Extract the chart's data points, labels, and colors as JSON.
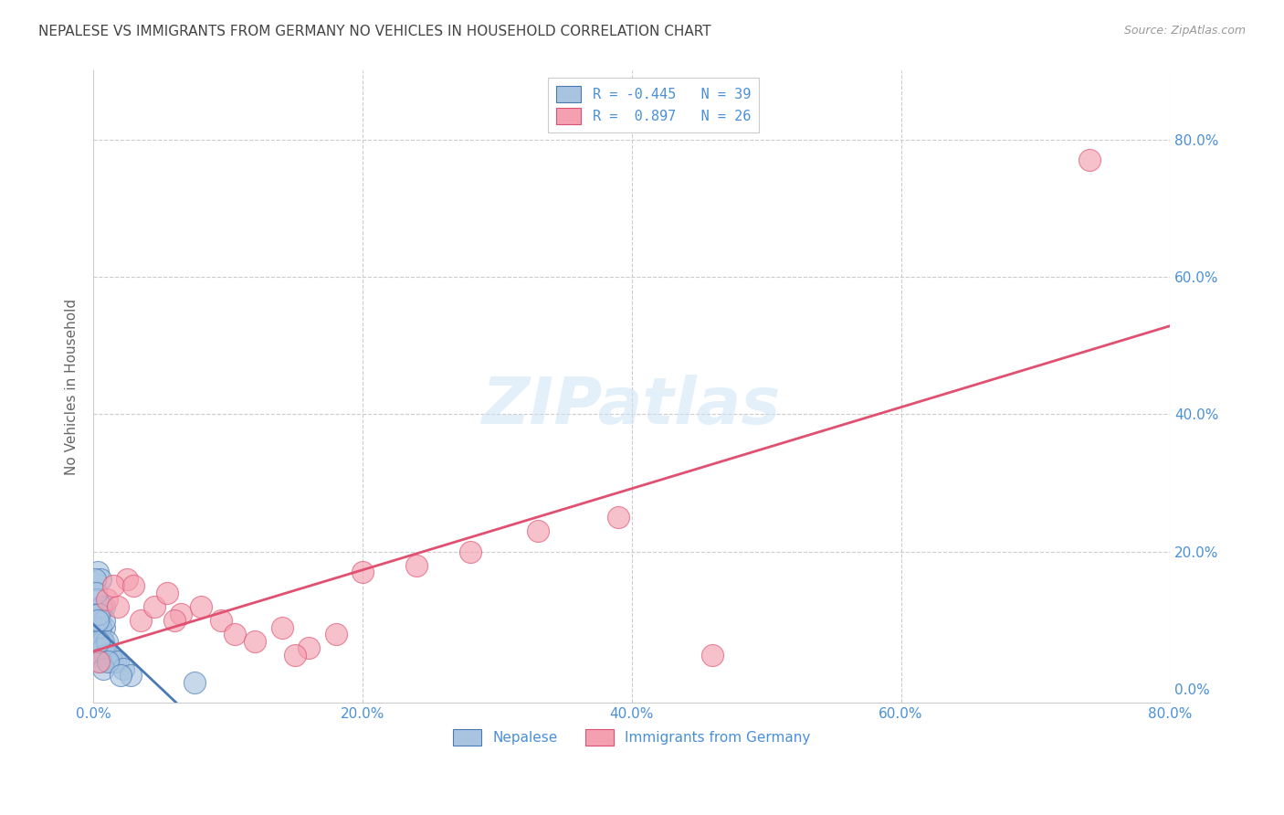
{
  "title": "NEPALESE VS IMMIGRANTS FROM GERMANY NO VEHICLES IN HOUSEHOLD CORRELATION CHART",
  "source": "Source: ZipAtlas.com",
  "ylabel": "No Vehicles in Household",
  "watermark": "ZIPatlas",
  "legend_label1": "Nepalese",
  "legend_label2": "Immigrants from Germany",
  "R1": -0.445,
  "N1": 39,
  "R2": 0.897,
  "N2": 26,
  "color1": "#a8c4e0",
  "color2": "#f4a0b0",
  "trendline1_color": "#4a7ab5",
  "trendline2_color": "#e05070",
  "title_color": "#444444",
  "axis_label_color": "#4a90d9",
  "source_color": "#999999",
  "background_color": "#ffffff",
  "nepalese_x": [
    0.3,
    0.5,
    0.8,
    0.2,
    0.3,
    0.4,
    0.5,
    0.6,
    0.7,
    0.8,
    0.9,
    1.0,
    1.2,
    1.4,
    1.6,
    0.15,
    0.25,
    0.35,
    0.45,
    0.55,
    0.65,
    0.75,
    0.9,
    0.6,
    0.8,
    1.0,
    1.3,
    1.8,
    2.2,
    2.8,
    0.4,
    0.3,
    0.5,
    0.7,
    1.1,
    7.5,
    2.0,
    0.2,
    0.4
  ],
  "nepalese_y": [
    17,
    16,
    12,
    10,
    8,
    6,
    6,
    5,
    7,
    9,
    6,
    5,
    5,
    4,
    4,
    16,
    13,
    11,
    10,
    9,
    7,
    6,
    5,
    12,
    10,
    7,
    5,
    4,
    3,
    2,
    11,
    10,
    4,
    3,
    4,
    1,
    2,
    14,
    7
  ],
  "germany_x": [
    0.4,
    1.0,
    1.8,
    2.5,
    3.5,
    4.5,
    5.5,
    6.5,
    8.0,
    9.5,
    10.5,
    12.0,
    14.0,
    16.0,
    18.0,
    20.0,
    24.0,
    28.0,
    33.0,
    39.0,
    46.0,
    74.0,
    15.0,
    6.0,
    1.5,
    3.0
  ],
  "germany_y": [
    4,
    13,
    12,
    16,
    10,
    12,
    14,
    11,
    12,
    10,
    8,
    7,
    9,
    6,
    8,
    17,
    18,
    20,
    23,
    25,
    5,
    77,
    5,
    10,
    15,
    15
  ]
}
